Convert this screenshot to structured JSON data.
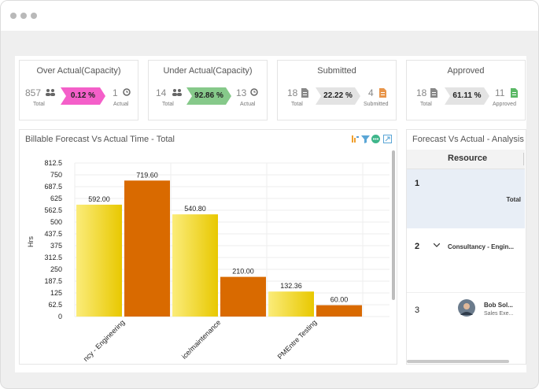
{
  "kpis": [
    {
      "title": "Over Actual(Capacity)",
      "total": "857",
      "total_label": "Total",
      "percent": "0.12 %",
      "actual": "1",
      "actual_label": "Actual",
      "badge_color": "#f45fc9"
    },
    {
      "title": "Under Actual(Capacity)",
      "total": "14",
      "total_label": "Total",
      "percent": "92.86 %",
      "actual": "13",
      "actual_label": "Actual",
      "badge_color": "#86c98a"
    },
    {
      "title": "Submitted",
      "total": "18",
      "total_label": "Total",
      "percent": "22.22 %",
      "actual": "4",
      "actual_label": "Submitted",
      "badge_color": "#e3e3e3"
    },
    {
      "title": "Approved",
      "total": "18",
      "total_label": "Total",
      "percent": "61.11 %",
      "actual": "11",
      "actual_label": "Approved",
      "badge_color": "#e3e3e3"
    }
  ],
  "chart_panel": {
    "title": "Billable Forecast Vs Actual Time - Total"
  },
  "chart_data": {
    "type": "bar",
    "title": "Billable Forecast Vs Actual Time - Total",
    "ylabel": "Hrs",
    "xlabel": "",
    "ylim": [
      0,
      812.5
    ],
    "yticks": [
      "812.5",
      "750",
      "687.5",
      "625",
      "562.5",
      "500",
      "437.5",
      "375",
      "312.5",
      "250",
      "187.5",
      "125",
      "62.5",
      "0"
    ],
    "categories": [
      "ncy - Engineering",
      "ice/maintenance",
      "PMEntre Testing"
    ],
    "series": [
      {
        "values": [
          592.0,
          540.8,
          132.36
        ],
        "color": "#e8c800"
      },
      {
        "values": [
          719.6,
          210.0,
          60.0
        ],
        "color": "#d96a00"
      }
    ],
    "data_labels": [
      [
        "592.00",
        "540.80",
        "132.36"
      ],
      [
        "719.60",
        "210.00",
        "60.00"
      ]
    ],
    "grid": true
  },
  "analysis_panel": {
    "title": "Forecast Vs Actual - Analysis",
    "column_header": "Resource",
    "rows": [
      {
        "num": "1",
        "label": "Total"
      },
      {
        "num": "2",
        "label": "Consultancy - Engin..."
      },
      {
        "num": "3",
        "name": "Bob Sol...",
        "role": "Sales Exe..."
      }
    ]
  }
}
